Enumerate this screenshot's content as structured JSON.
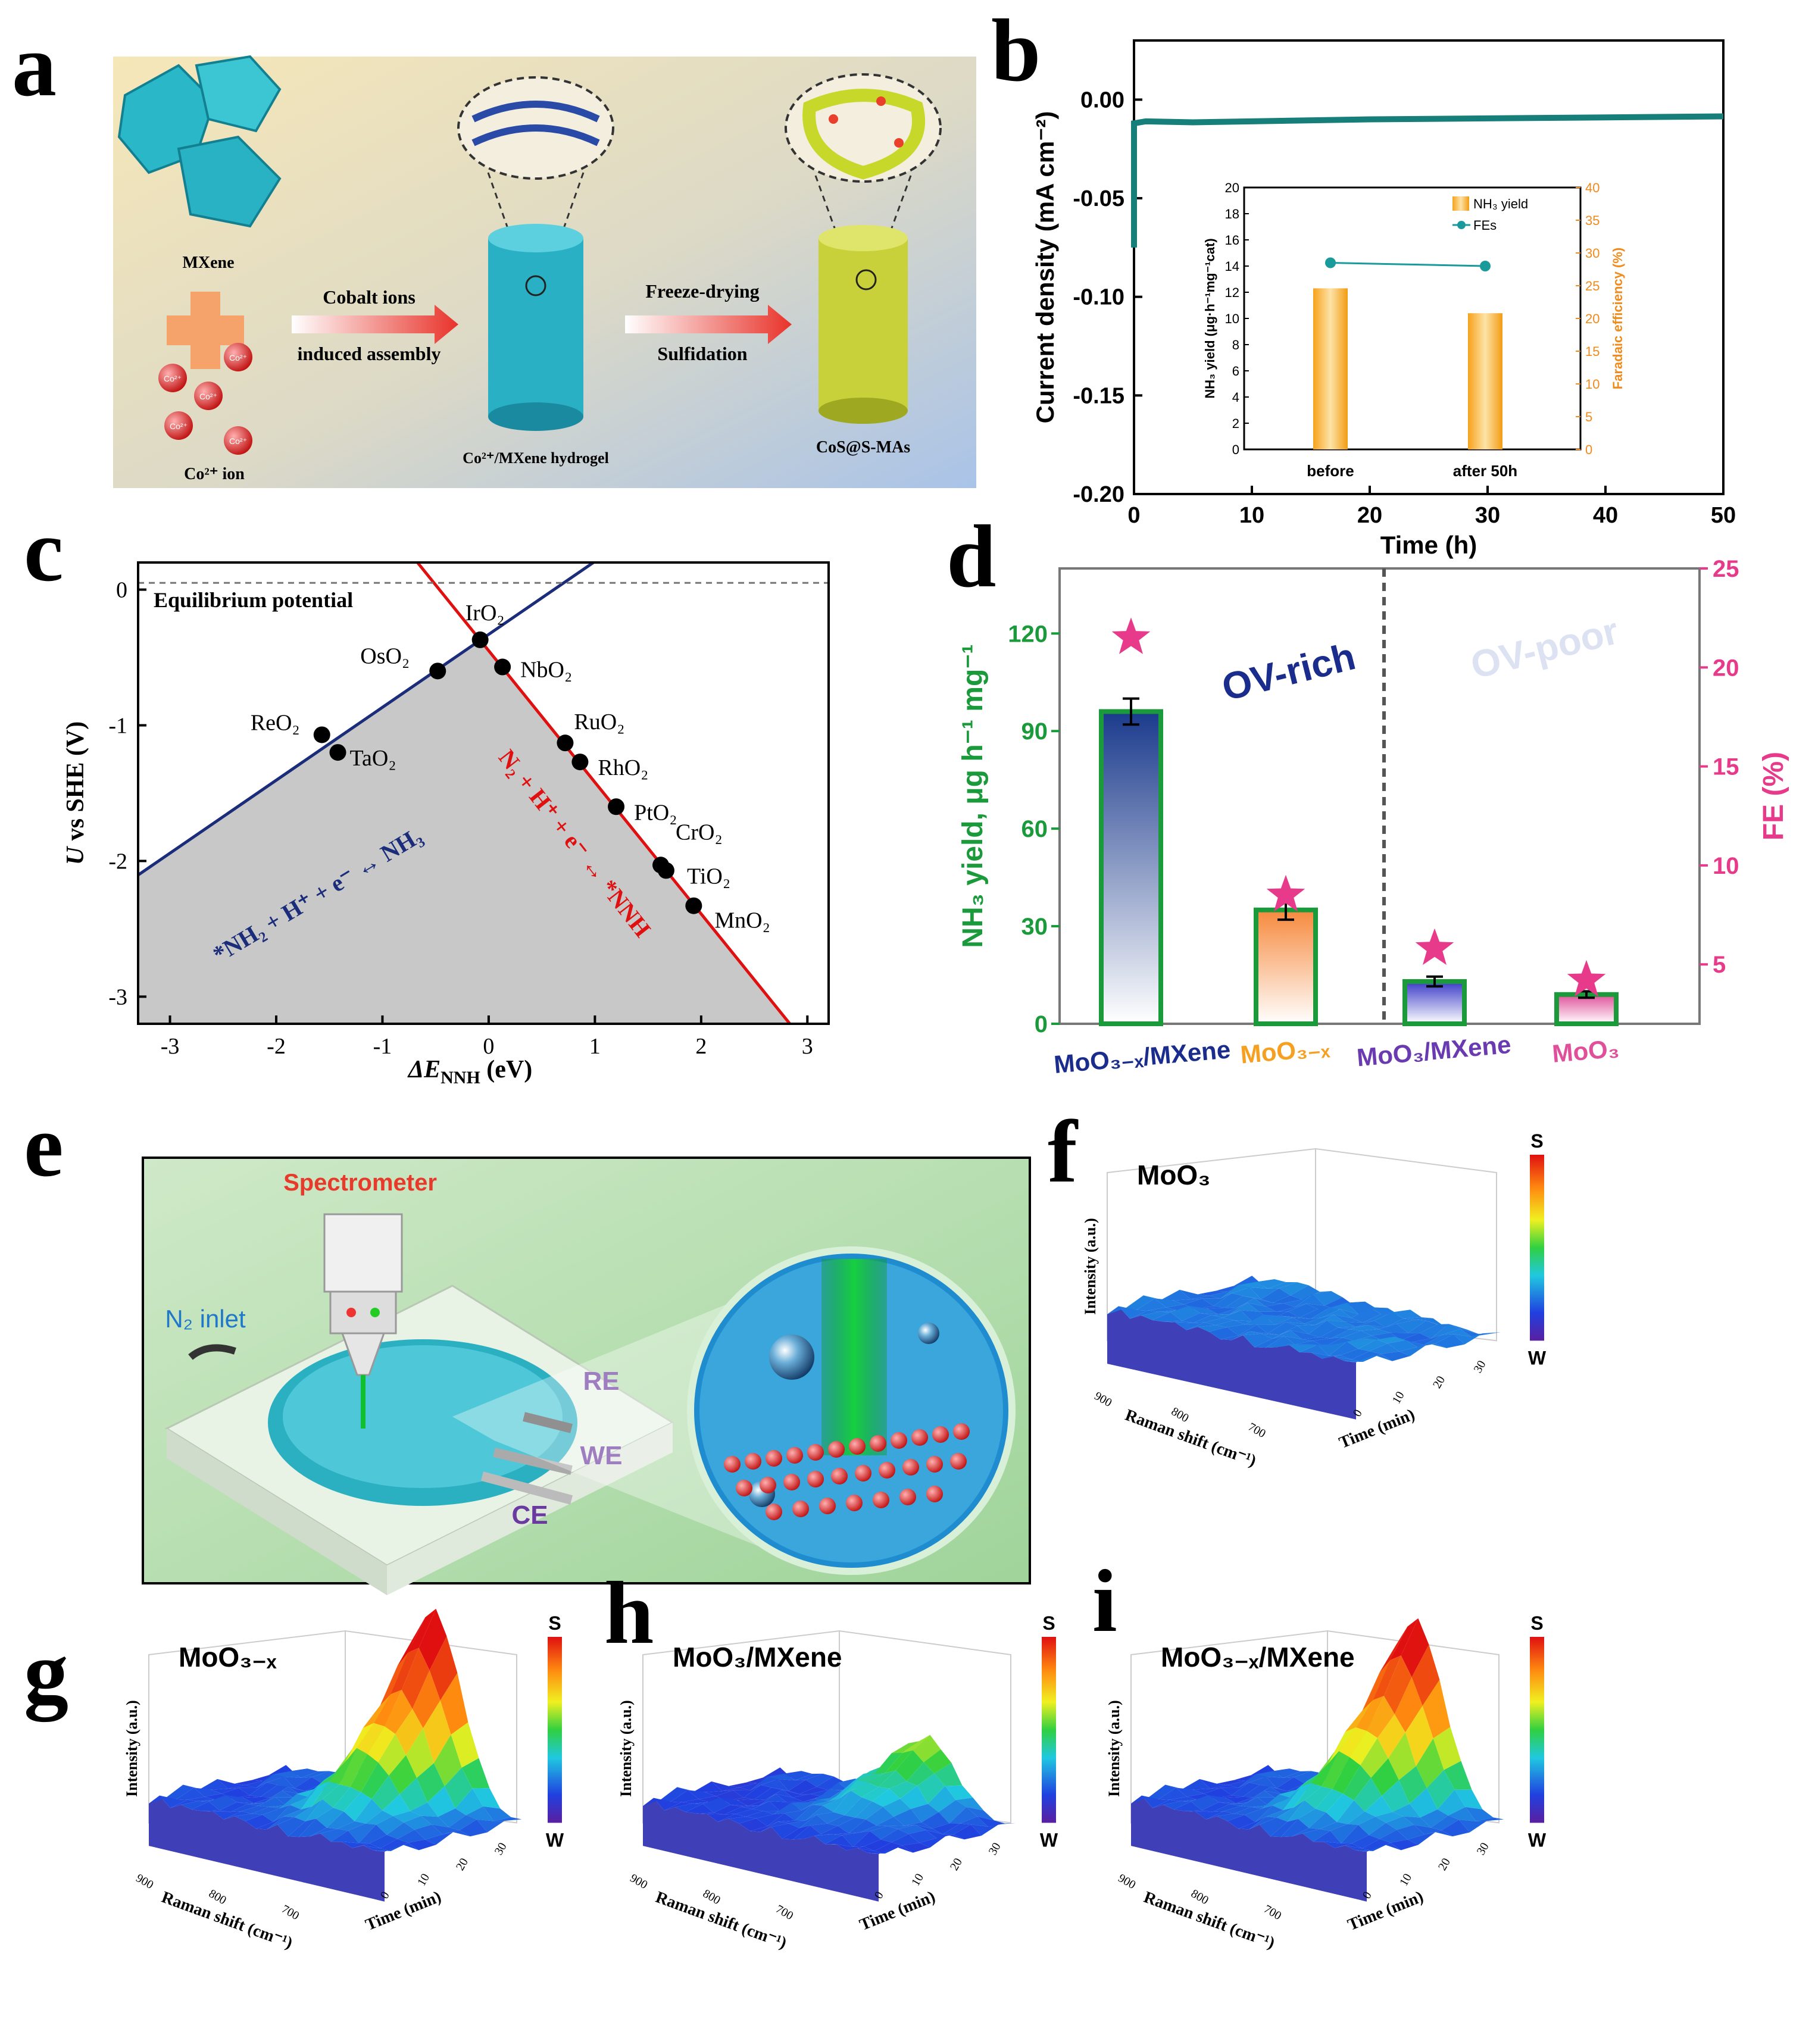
{
  "panels": {
    "a": {
      "letter": "a",
      "labels": {
        "mxene": "MXene",
        "co_ion": "Co²⁺ ion",
        "co_symbol": "Co²⁺",
        "arrow1_top": "Cobalt ions",
        "arrow1_bottom": "induced assembly",
        "arrow2_top": "Freeze-drying",
        "arrow2_bottom": "Sulfidation",
        "hydrogel": "Co²⁺/MXene hydrogel",
        "product": "CoS@S-MAs"
      }
    },
    "b": {
      "letter": "b"
    },
    "c": {
      "letter": "c"
    },
    "d": {
      "letter": "d"
    },
    "e": {
      "letter": "e",
      "labels": {
        "spectrometer": "Spectrometer",
        "n2_inlet": "N₂ inlet",
        "re": "RE",
        "we": "WE",
        "ce": "CE"
      }
    },
    "f": {
      "letter": "f",
      "title": "MoO₃"
    },
    "g": {
      "letter": "g",
      "title": "MoO₃₋ₓ"
    },
    "h": {
      "letter": "h",
      "title": "MoO₃/MXene"
    },
    "i": {
      "letter": "i",
      "title": "MoO₃₋ₓ/MXene"
    }
  },
  "surface_axes": {
    "z_label": "Intensity (a.u.)",
    "x_label": "Raman shift (cm⁻¹)",
    "y_label": "Time (min)",
    "x_ticks": [
      "900",
      "800",
      "700"
    ],
    "y_ticks": [
      "0",
      "10",
      "20",
      "30"
    ],
    "colorbar_top": "S",
    "colorbar_bottom": "W"
  },
  "chart_data": [
    {
      "id": "b",
      "type": "line",
      "xlabel": "Time (h)",
      "ylabel": "Current density (mA cm⁻²)",
      "xlim": [
        0,
        50
      ],
      "ylim": [
        -0.2,
        0.03
      ],
      "xticks": [
        "0",
        "10",
        "20",
        "30",
        "40",
        "50"
      ],
      "yticks": [
        "0.00",
        "-0.05",
        "-0.10",
        "-0.15",
        "-0.20"
      ],
      "series": [
        {
          "name": "current density",
          "x": [
            0,
            1,
            5,
            10,
            20,
            30,
            40,
            50
          ],
          "y": [
            -0.012,
            -0.011,
            -0.0115,
            -0.011,
            -0.01,
            -0.0095,
            -0.009,
            -0.0085
          ]
        }
      ],
      "inset": {
        "type": "bar",
        "categories": [
          "before",
          "after 50h"
        ],
        "bar_name": "NH₃ yield",
        "line_name": "FEs",
        "values": [
          12.3,
          10.4
        ],
        "fe_values": [
          28.5,
          28.0
        ],
        "ylabel": "NH₃ yield (μg·h⁻¹mg⁻¹cat)",
        "ylabel2": "Faradaic efficiency (%)",
        "ylim": [
          0,
          20
        ],
        "ylim2": [
          0,
          40
        ],
        "yticks": [
          "0",
          "2",
          "4",
          "6",
          "8",
          "10",
          "12",
          "14",
          "16",
          "18",
          "20"
        ],
        "yticks2": [
          "0",
          "5",
          "10",
          "15",
          "20",
          "25",
          "30",
          "35",
          "40"
        ]
      }
    },
    {
      "id": "c",
      "type": "scatter",
      "xlabel": "ΔE",
      "xlabel_sub": "NNH",
      "xlabel_unit": " (eV)",
      "ylabel_italic": "U",
      "ylabel_rest": " vs SHE (V)",
      "xlim": [
        -3.3,
        3.2
      ],
      "ylim": [
        -3.2,
        0.2
      ],
      "xticks": [
        "-3",
        "-2",
        "-1",
        "0",
        "1",
        "2",
        "3"
      ],
      "yticks": [
        "0",
        "-1",
        "-2",
        "-3"
      ],
      "equilibrium_label": "Equilibrium potential",
      "equilibrium_value": 0.05,
      "blue_line_label": "*NH₂ + H⁺ + e⁻ ↔ NH₃",
      "red_line_label": "N₂ + H⁺ + e⁻ ↔ *NNH",
      "points": [
        {
          "label": "ReO₂",
          "x": -1.57,
          "y": -1.07
        },
        {
          "label": "TaO₂",
          "x": -1.42,
          "y": -1.2
        },
        {
          "label": "OsO₂",
          "x": -0.48,
          "y": -0.6
        },
        {
          "label": "IrO₂",
          "x": -0.08,
          "y": -0.37
        },
        {
          "label": "NbO₂",
          "x": 0.13,
          "y": -0.57
        },
        {
          "label": "RuO₂",
          "x": 0.72,
          "y": -1.13
        },
        {
          "label": "RhO₂",
          "x": 0.86,
          "y": -1.27
        },
        {
          "label": "PtO₂",
          "x": 1.2,
          "y": -1.6
        },
        {
          "label": "CrO₂",
          "x": 1.62,
          "y": -2.03
        },
        {
          "label": "TiO₂",
          "x": 1.67,
          "y": -2.07
        },
        {
          "label": "MnO₂",
          "x": 1.93,
          "y": -2.33
        }
      ]
    },
    {
      "id": "d",
      "type": "bar",
      "ylabel": "NH₃ yield, μg h⁻¹ mg⁻¹",
      "ylabel2": "FE (%)",
      "ylim": [
        0,
        140
      ],
      "ylim2": [
        2,
        25
      ],
      "yticks": [
        "0",
        "30",
        "60",
        "90",
        "120"
      ],
      "yticks2": [
        "5",
        "10",
        "15",
        "20",
        "25"
      ],
      "categories": [
        "MoO₃₋ₓ/MXene",
        "MoO₃₋ₓ",
        "MoO₃/MXene",
        "MoO₃"
      ],
      "values": [
        96,
        35,
        13,
        9
      ],
      "errors": [
        4,
        3,
        1.5,
        1
      ],
      "fe_values": [
        21.5,
        8.5,
        5.8,
        4.2
      ],
      "region_labels": [
        "OV-rich",
        "OV-poor"
      ]
    }
  ]
}
